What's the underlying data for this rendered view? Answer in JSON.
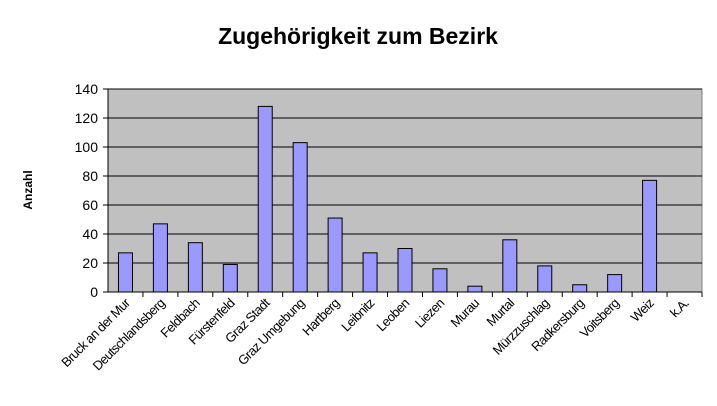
{
  "chart_data": {
    "type": "bar",
    "title": "Zugehörigkeit zum Bezirk",
    "y_label": "Anzahl",
    "categories": [
      "Bruck an der Mur",
      "Deutschlandsberg",
      "Feldbach",
      "Fürstenfeld",
      "Graz Stadt",
      "Graz Umgebung",
      "Hartberg",
      "Leibnitz",
      "Leoben",
      "Liezen",
      "Murau",
      "Murtal",
      "Mürzzuschlag",
      "Radkersburg",
      "Voitsberg",
      "Weiz",
      "k.A."
    ],
    "values": [
      27,
      47,
      34,
      19,
      128,
      103,
      51,
      27,
      30,
      16,
      4,
      36,
      18,
      5,
      12,
      77,
      0
    ],
    "color": "#9999ff",
    "ylim": [
      0,
      140
    ],
    "yticks": [
      0,
      20,
      40,
      60,
      80,
      100,
      120,
      140
    ],
    "grid": true
  }
}
